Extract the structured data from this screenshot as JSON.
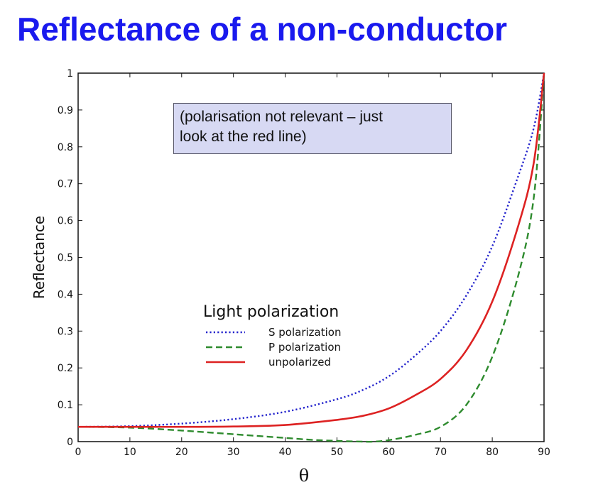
{
  "slide": {
    "title": "Reflectance of a non-conductor",
    "note_lines": [
      "(polarisation not relevant – just",
      "look at the red line)"
    ]
  },
  "chart_data": {
    "type": "line",
    "xlabel": "θ",
    "ylabel": "Reflectance",
    "xlim": [
      0,
      90
    ],
    "ylim": [
      0,
      1
    ],
    "xticks": [
      0,
      10,
      20,
      30,
      40,
      50,
      60,
      70,
      80,
      90
    ],
    "yticks": [
      0,
      0.1,
      0.2,
      0.3,
      0.4,
      0.5,
      0.6,
      0.7,
      0.8,
      0.9,
      1
    ],
    "ytick_labels": [
      "0",
      "0.1",
      "0.2",
      "0.3",
      "0.4",
      "0.5",
      "0.6",
      "0.7",
      "0.8",
      "0.9",
      "1"
    ],
    "grid": false,
    "legend": {
      "title": "Light polarization",
      "placement": "center-left"
    },
    "series": [
      {
        "name": "S polarization",
        "color": "#2222cc",
        "style": "dotted",
        "x": [
          0,
          10,
          20,
          30,
          40,
          50,
          55,
          60,
          65,
          70,
          75,
          80,
          85,
          88,
          90
        ],
        "y": [
          0.04,
          0.042,
          0.049,
          0.061,
          0.081,
          0.115,
          0.14,
          0.177,
          0.232,
          0.3,
          0.397,
          0.53,
          0.72,
          0.85,
          1.0
        ]
      },
      {
        "name": "P polarization",
        "color": "#2e8b2e",
        "style": "dashed",
        "x": [
          0,
          10,
          20,
          30,
          40,
          45,
          50,
          55,
          57,
          60,
          65,
          70,
          75,
          80,
          85,
          88,
          90
        ],
        "y": [
          0.04,
          0.038,
          0.03,
          0.02,
          0.01,
          0.005,
          0.002,
          0.0,
          0.0,
          0.004,
          0.018,
          0.04,
          0.1,
          0.23,
          0.45,
          0.66,
          1.0
        ]
      },
      {
        "name": "unpolarized",
        "color": "#dd2222",
        "style": "solid",
        "x": [
          0,
          10,
          20,
          30,
          40,
          50,
          55,
          60,
          65,
          70,
          75,
          80,
          85,
          88,
          90
        ],
        "y": [
          0.04,
          0.04,
          0.04,
          0.041,
          0.045,
          0.059,
          0.07,
          0.09,
          0.125,
          0.17,
          0.248,
          0.38,
          0.585,
          0.755,
          1.0
        ]
      }
    ]
  }
}
